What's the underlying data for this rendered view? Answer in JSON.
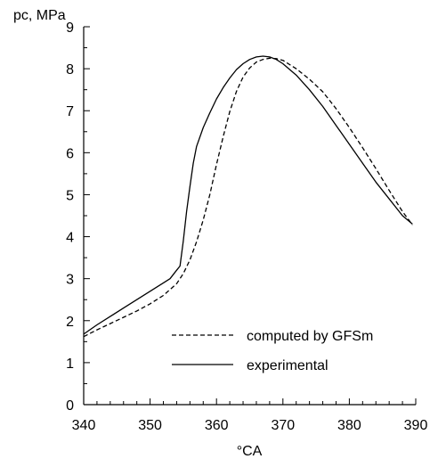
{
  "chart_data": {
    "type": "line",
    "xlabel": "°CA",
    "ylabel": "pc, MPa",
    "xlim": [
      340,
      390
    ],
    "ylim": [
      0,
      9
    ],
    "xticks": [
      340,
      350,
      360,
      370,
      380,
      390
    ],
    "yticks": [
      0,
      1,
      2,
      3,
      4,
      5,
      6,
      7,
      8,
      9
    ],
    "grid": false,
    "legend_position": "lower-right",
    "series": [
      {
        "name": "computed by GFSm",
        "style": "dashed",
        "x": [
          340,
          342,
          344,
          346,
          348,
          350,
          352,
          354,
          355,
          356,
          357,
          358,
          359,
          360,
          361,
          362,
          363,
          364,
          365,
          366,
          367,
          368,
          369,
          370,
          372,
          374,
          376,
          378,
          380,
          382,
          384,
          386,
          388,
          389.5
        ],
        "y": [
          1.62,
          1.78,
          1.93,
          2.08,
          2.23,
          2.4,
          2.6,
          2.88,
          3.12,
          3.45,
          3.88,
          4.4,
          5.0,
          5.72,
          6.38,
          6.98,
          7.46,
          7.8,
          8.02,
          8.16,
          8.22,
          8.25,
          8.24,
          8.2,
          8.0,
          7.75,
          7.45,
          7.05,
          6.6,
          6.12,
          5.62,
          5.1,
          4.6,
          4.28
        ]
      },
      {
        "name": "experimental",
        "style": "solid",
        "x": [
          340,
          342,
          344,
          346,
          348,
          350,
          352,
          353,
          354,
          354.5,
          355,
          355.5,
          356,
          356.5,
          357,
          358,
          359,
          360,
          361,
          362,
          363,
          364,
          365,
          366,
          367,
          368,
          369,
          370,
          372,
          374,
          376,
          378,
          380,
          382,
          384,
          386,
          388,
          389.5
        ],
        "y": [
          1.68,
          1.9,
          2.1,
          2.3,
          2.5,
          2.7,
          2.9,
          3.0,
          3.2,
          3.3,
          3.9,
          4.6,
          5.2,
          5.75,
          6.15,
          6.6,
          6.95,
          7.28,
          7.55,
          7.78,
          7.98,
          8.12,
          8.22,
          8.28,
          8.3,
          8.28,
          8.22,
          8.12,
          7.85,
          7.5,
          7.1,
          6.65,
          6.2,
          5.75,
          5.3,
          4.9,
          4.5,
          4.3
        ]
      }
    ]
  }
}
